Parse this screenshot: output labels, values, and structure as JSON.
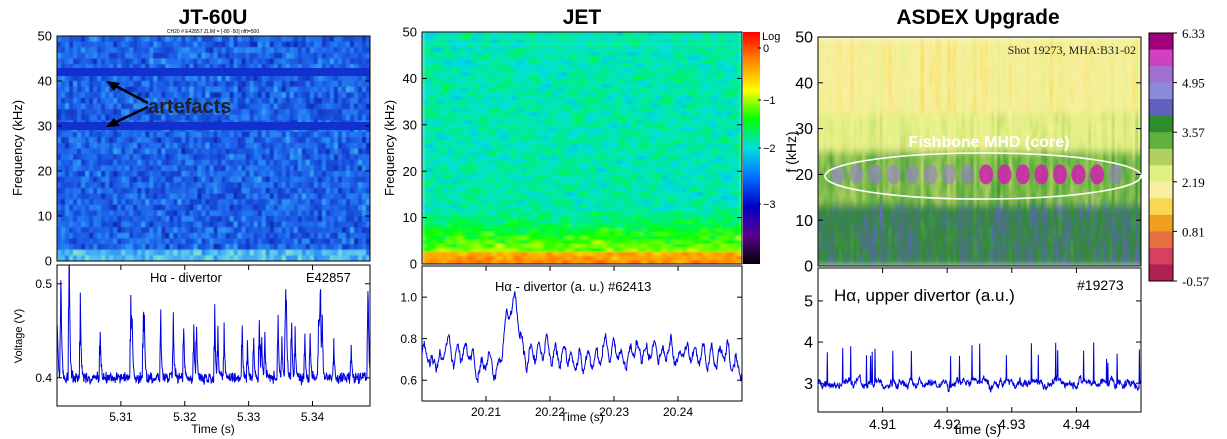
{
  "chart_data": [
    {
      "type": "heatmap",
      "title": "JT-60U",
      "ylabel": "Frequency (kHz)",
      "ylim": [
        0,
        50
      ],
      "yticks": [
        "0",
        "10",
        "20",
        "30",
        "40",
        "50"
      ],
      "header_note": "CH20 # E42857    ZLIM = [-80 -50]  nfft=500",
      "annotation": "artefacts",
      "artefact_bands_khz": [
        42,
        30
      ],
      "colormap": [
        "#061a8c",
        "#1337c8",
        "#1e66ee",
        "#2f9af5",
        "#5dc9f0",
        "#8fe8c0"
      ]
    },
    {
      "type": "line",
      "title": "",
      "label": "Hα - divertor",
      "shot": "E42857",
      "xlabel": "Time (s)",
      "ylabel": "Voltage (V)",
      "xlim": [
        5.3,
        5.349
      ],
      "ylim": [
        0.37,
        0.52
      ],
      "xticks": [
        "5.31",
        "5.32",
        "5.33",
        "5.34"
      ],
      "yticks": [
        "0.4",
        "0.5"
      ],
      "baseline": 0.4,
      "spike_max": 0.5,
      "spike_count": 44,
      "color": "#0000dd"
    },
    {
      "type": "heatmap",
      "title": "JET",
      "ylabel": "Frequency (kHz)",
      "ylim": [
        0,
        50
      ],
      "yticks": [
        "0",
        "10",
        "20",
        "30",
        "40",
        "50"
      ],
      "colorbar": {
        "label": "Log",
        "ticks": [
          "0",
          "−1",
          "−2",
          "−3"
        ],
        "colors": [
          "#ff0000",
          "#ff8800",
          "#ffff00",
          "#00ff00",
          "#00e0e0",
          "#0070ff",
          "#0000c8",
          "#5a0090",
          "#000000"
        ]
      }
    },
    {
      "type": "line",
      "title": "",
      "label": "Hα - divertor (a. u.) #62413",
      "xlabel": "Time (s)",
      "ylabel": "",
      "xlim": [
        20.2,
        20.25
      ],
      "ylim": [
        0.5,
        1.15
      ],
      "xticks": [
        "20.21",
        "20.22",
        "20.23",
        "20.24"
      ],
      "yticks": [
        "0.6",
        "0.8",
        "1.0"
      ],
      "baseline": 0.72,
      "peak_value": 1.03,
      "color": "#0000dd"
    },
    {
      "type": "heatmap",
      "title": "ASDEX Upgrade",
      "ylabel": "f (kHz)",
      "ylim": [
        0,
        50
      ],
      "yticks": [
        "0",
        "10",
        "20",
        "30",
        "40",
        "50"
      ],
      "header_note": "Shot 19273, MHA:B31-02",
      "annotation": "Fishbone MHD (core)",
      "fishbone_freq_khz": 20,
      "colorbar": {
        "ticks": [
          "6.33",
          "4.95",
          "3.57",
          "2.19",
          "0.81",
          "-0.57"
        ],
        "colors": [
          "#a0007a",
          "#d040c0",
          "#a070d0",
          "#8a8ad8",
          "#6060c0",
          "#2e8b2e",
          "#60b040",
          "#b0d060",
          "#e0f080",
          "#f8f0a0",
          "#f8d850",
          "#f0a020",
          "#e87040",
          "#d84060",
          "#b02050"
        ]
      }
    },
    {
      "type": "line",
      "title": "",
      "label": "Hα, upper divertor (a.u.)",
      "shot": "#19273",
      "xlabel": "time (s)",
      "ylabel": "",
      "xlim": [
        4.9,
        4.95
      ],
      "ylim": [
        2.3,
        5.8
      ],
      "xticks": [
        "4.91",
        "4.92",
        "4.93",
        "4.94"
      ],
      "yticks": [
        "3",
        "4",
        "5"
      ],
      "baseline": 3.0,
      "color": "#0000dd"
    }
  ]
}
